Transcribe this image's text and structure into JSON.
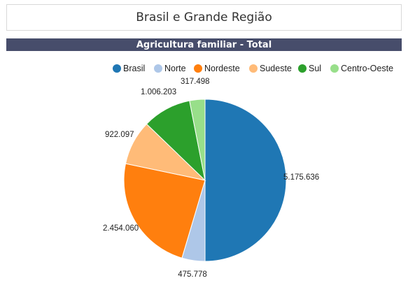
{
  "page": {
    "title": "Brasil e Grande Região",
    "chart_title": "Agricultura familiar - Total"
  },
  "chart_data": {
    "type": "pie",
    "title": "Agricultura familiar - Total",
    "legend_position": "top-right",
    "slices": [
      {
        "name": "Brasil",
        "value": 5175636,
        "label": "5.175.636",
        "color": "#1f77b4"
      },
      {
        "name": "Norte",
        "value": 475778,
        "label": "475.778",
        "color": "#aec7e8"
      },
      {
        "name": "Nordeste",
        "value": 2454060,
        "label": "2.454.060",
        "color": "#ff7f0e"
      },
      {
        "name": "Sudeste",
        "value": 922097,
        "label": "922.097",
        "color": "#ffbb78"
      },
      {
        "name": "Sul",
        "value": 1006203,
        "label": "1.006.203",
        "color": "#2ca02c"
      },
      {
        "name": "Centro-Oeste",
        "value": 317498,
        "label": "317.498",
        "color": "#98df8a"
      }
    ]
  }
}
